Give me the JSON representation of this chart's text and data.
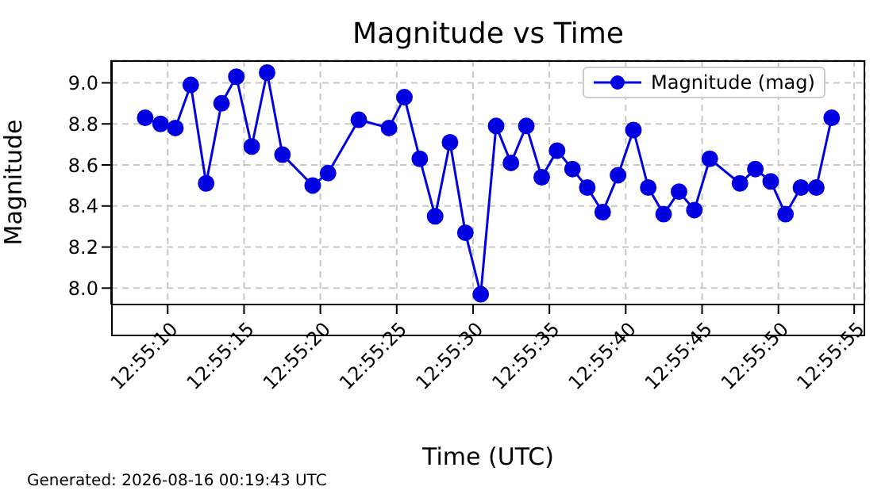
{
  "chart_data": {
    "type": "line",
    "title": "Magnitude vs Time",
    "xlabel": "Time (UTC)",
    "ylabel": "Magnitude",
    "annotations": [
      "Generated: 2026-08-16 00:19:43 UTC"
    ],
    "x": [
      12.91903,
      12.91931,
      12.91958,
      12.91986,
      12.92014,
      12.92042,
      12.92069,
      12.92097,
      12.92125,
      12.92153,
      12.92208,
      12.92236,
      12.92292,
      12.92347,
      12.92375,
      12.92403,
      12.92431,
      12.92458,
      12.92486,
      12.92514,
      12.92542,
      12.92569,
      12.92597,
      12.92625,
      12.92653,
      12.92681,
      12.92708,
      12.92736,
      12.92764,
      12.92792,
      12.92819,
      12.92847,
      12.92875,
      12.92903,
      12.92931,
      12.92986,
      12.93014,
      12.93042,
      12.93069,
      12.93097,
      12.93125,
      12.93153
    ],
    "series": [
      {
        "name": "Magnitude (mag)",
        "color": "#0000e0",
        "values": [
          8.83,
          8.8,
          8.78,
          8.99,
          8.51,
          8.9,
          9.03,
          8.69,
          9.05,
          8.65,
          8.5,
          8.56,
          8.82,
          8.78,
          8.93,
          8.63,
          8.35,
          8.71,
          8.27,
          7.97,
          8.79,
          8.61,
          8.79,
          8.54,
          8.67,
          8.58,
          8.49,
          8.37,
          8.55,
          8.77,
          8.49,
          8.36,
          8.47,
          8.38,
          8.63,
          8.51,
          8.58,
          8.52,
          8.36,
          8.49,
          8.49,
          8.83
        ]
      }
    ],
    "xlim": [
      12.91841,
      12.93214
    ],
    "xticks": [
      {
        "value": 12.91944,
        "label": "12:55:10"
      },
      {
        "value": 12.92083,
        "label": "12:55:15"
      },
      {
        "value": 12.92222,
        "label": "12:55:20"
      },
      {
        "value": 12.92361,
        "label": "12:55:25"
      },
      {
        "value": 12.925,
        "label": "12:55:30"
      },
      {
        "value": 12.92639,
        "label": "12:55:35"
      },
      {
        "value": 12.92778,
        "label": "12:55:40"
      },
      {
        "value": 12.92917,
        "label": "12:55:45"
      },
      {
        "value": 12.93056,
        "label": "12:55:50"
      },
      {
        "value": 12.93194,
        "label": "12:55:55"
      }
    ],
    "ylim": [
      7.92,
      9.11
    ],
    "yticks": [
      {
        "value": 8,
        "label": "8.0"
      },
      8.2,
      8.4,
      8.6,
      8.8,
      {
        "value": 9,
        "label": "9.0"
      }
    ],
    "grid": true,
    "legend": "top right",
    "marker": "circle",
    "line_style": "solid"
  }
}
